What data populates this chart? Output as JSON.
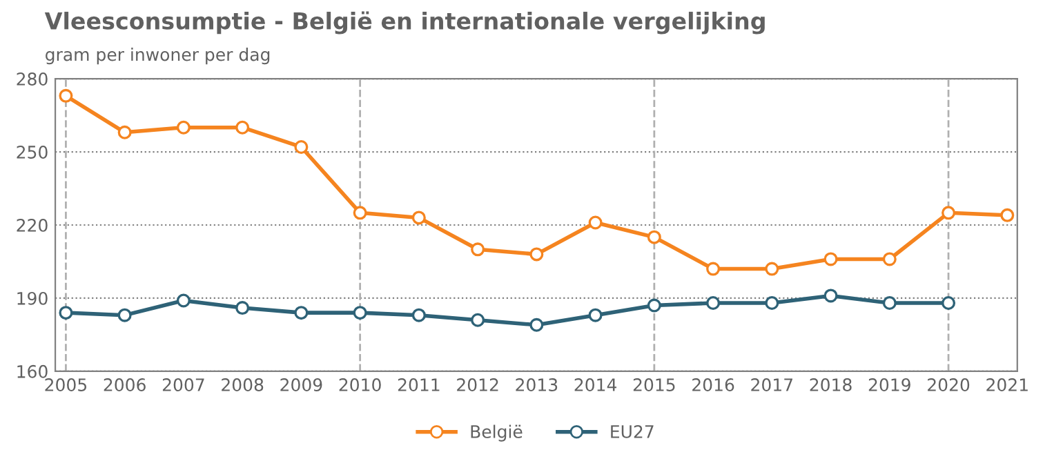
{
  "chart_data": {
    "type": "line",
    "title": "Vleesconsumptie - België en internationale vergelijking",
    "subtitle": "gram per inwoner per dag",
    "x": [
      2005,
      2006,
      2007,
      2008,
      2009,
      2010,
      2011,
      2012,
      2013,
      2014,
      2015,
      2016,
      2017,
      2018,
      2019,
      2020,
      2021
    ],
    "series": [
      {
        "name": "België",
        "color": "#f5841f",
        "values": [
          273,
          258,
          260,
          260,
          252,
          225,
          223,
          210,
          208,
          221,
          215,
          202,
          202,
          206,
          206,
          225,
          224
        ]
      },
      {
        "name": "EU27",
        "color": "#2e6277",
        "values": [
          184,
          183,
          189,
          186,
          184,
          184,
          183,
          181,
          179,
          183,
          187,
          188,
          188,
          191,
          188,
          188,
          null
        ]
      }
    ],
    "xlim": [
      2004.82,
      2021.17
    ],
    "xticks": [
      2005,
      2006,
      2007,
      2008,
      2009,
      2010,
      2011,
      2012,
      2013,
      2014,
      2015,
      2016,
      2017,
      2018,
      2019,
      2020,
      2021
    ],
    "ylim": [
      160,
      280
    ],
    "yticks": [
      160,
      190,
      220,
      250,
      280
    ],
    "ref_lines": [
      {
        "axis": "x",
        "value": 2005,
        "color": "#b0b0b0",
        "line_style": "dashed"
      },
      {
        "axis": "x",
        "value": 2010,
        "color": "#b0b0b0",
        "line_style": "dashed"
      },
      {
        "axis": "x",
        "value": 2015,
        "color": "#b0b0b0",
        "line_style": "dashed"
      },
      {
        "axis": "x",
        "value": 2020,
        "color": "#b0b0b0",
        "line_style": "dashed"
      }
    ],
    "grid": "y",
    "legend": "bottom",
    "marker": "circle",
    "line_style": "solid"
  }
}
